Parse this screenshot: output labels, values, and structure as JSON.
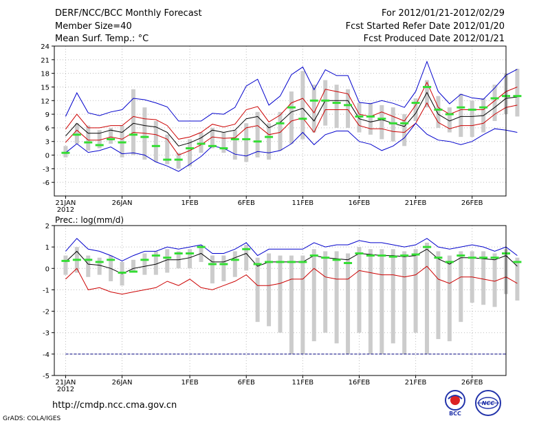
{
  "header": {
    "title": "DERF/NCC/BCC Monthly Forecast",
    "member_size": "Member Size=40",
    "variable": "Mean Surf. Temp.: °C",
    "period": "For 2012/01/21-2012/02/29",
    "start_date": "Fcst Started Refer Date 2012/01/20",
    "produced_date": "Fcst Produced Date 2012/01/21"
  },
  "footer": {
    "url": "http://cmdp.ncc.cma.gov.cn",
    "grads": "GrADS: COLA/IGES",
    "logo1_text": "BCC",
    "logo2_text": "NCC"
  },
  "colors": {
    "max": "#0000cc",
    "mean": "#000000",
    "spread": "#cc0000",
    "median": "#33dd33",
    "box": "#cccccc",
    "ref": "#000080"
  },
  "chart_data": [
    {
      "type": "line",
      "title": "Mean Surf. Temp.: °C",
      "x_tick_labels": [
        "21JAN",
        "26JAN",
        "1FEB",
        "6FEB",
        "11FEB",
        "16FEB",
        "21FEB",
        "26FEB"
      ],
      "x_sublabel": "2012",
      "x_tick_days": [
        1,
        6,
        12,
        17,
        22,
        27,
        32,
        37
      ],
      "x_range_days": [
        0,
        40
      ],
      "y_tick_labels": [
        "-6",
        "-3",
        "0",
        "3",
        "6",
        "9",
        "12",
        "15",
        "18",
        "21",
        "24"
      ],
      "ylim": [
        -9,
        24
      ],
      "grid": true,
      "series": [
        {
          "name": "max",
          "values": [
            8.5,
            13.7,
            9.3,
            8.7,
            9.5,
            10.0,
            12.5,
            12.2,
            11.5,
            10.6,
            7.5,
            7.5,
            7.5,
            9.2,
            9.0,
            10.5,
            15.2,
            16.7,
            11.0,
            13.0,
            17.7,
            19.4,
            14.4,
            18.8,
            17.5,
            17.5,
            11.6,
            11.3,
            12.0,
            11.4,
            10.5,
            14.0,
            20.6,
            14.0,
            11.3,
            13.4,
            12.6,
            12.3,
            14.8,
            17.6,
            18.9
          ]
        },
        {
          "name": "spread_upper",
          "values": [
            5.7,
            9.0,
            6.0,
            6.0,
            6.5,
            6.5,
            8.5,
            8.0,
            7.8,
            6.5,
            3.5,
            4.0,
            5.0,
            6.8,
            6.2,
            6.8,
            10.0,
            10.7,
            7.3,
            8.8,
            11.5,
            12.5,
            9.3,
            14.5,
            14.0,
            13.5,
            9.0,
            8.5,
            9.5,
            8.5,
            7.5,
            11.0,
            16.0,
            10.5,
            9.0,
            10.0,
            10.0,
            10.0,
            12.0,
            14.0,
            15.0
          ]
        },
        {
          "name": "mean",
          "values": [
            4.2,
            7.0,
            4.8,
            4.8,
            5.5,
            5.0,
            7.0,
            6.5,
            6.2,
            5.0,
            2.0,
            2.7,
            3.8,
            5.5,
            5.0,
            5.5,
            8.0,
            8.5,
            6.0,
            7.2,
            9.5,
            10.3,
            7.5,
            12.0,
            12.0,
            12.0,
            8.0,
            7.3,
            7.8,
            7.0,
            6.3,
            9.2,
            13.8,
            9.0,
            7.5,
            8.5,
            8.5,
            8.7,
            10.5,
            12.5,
            12.8
          ]
        },
        {
          "name": "spread_lower",
          "values": [
            2.8,
            5.5,
            3.3,
            3.3,
            4.0,
            3.5,
            5.0,
            4.8,
            4.5,
            3.5,
            0.0,
            1.0,
            2.3,
            4.0,
            3.7,
            3.8,
            6.0,
            6.5,
            4.5,
            5.0,
            7.5,
            8.2,
            5.0,
            10.0,
            10.0,
            10.0,
            6.5,
            5.8,
            5.8,
            5.2,
            5.0,
            7.0,
            11.5,
            7.2,
            5.8,
            6.5,
            6.5,
            7.0,
            9.0,
            10.5,
            11.0
          ]
        },
        {
          "name": "min",
          "values": [
            0.5,
            2.5,
            0.6,
            1.0,
            1.8,
            0.3,
            0.5,
            0.0,
            -1.5,
            -2.4,
            -3.6,
            -2.0,
            -0.3,
            2.0,
            1.5,
            0.2,
            -0.2,
            0.8,
            0.5,
            1.0,
            2.5,
            5.0,
            2.3,
            4.5,
            5.3,
            5.3,
            3.0,
            2.4,
            1.0,
            2.0,
            3.8,
            7.0,
            4.6,
            3.3,
            3.0,
            2.3,
            3.0,
            4.5,
            5.8,
            5.5,
            5.0
          ]
        }
      ],
      "median": [
        0.5,
        4.5,
        2.8,
        2.2,
        3.5,
        2.8,
        4.5,
        4.0,
        2.0,
        -1.0,
        -1.0,
        1.5,
        2.5,
        2.0,
        1.5,
        3.5,
        3.5,
        3.0,
        4.0,
        7.0,
        10.5,
        8.0,
        12.0,
        12.0,
        11.5,
        11.0,
        8.5,
        8.5,
        8.0,
        7.0,
        7.0,
        11.5,
        15.0,
        10.0,
        9.0,
        10.5,
        10.0,
        10.5,
        12.5,
        13.0,
        13.0
      ],
      "box_low": [
        -0.5,
        2.5,
        1.0,
        1.5,
        2.5,
        -0.5,
        0.0,
        -1.0,
        -1.5,
        -2.0,
        -3.0,
        -2.5,
        0.5,
        1.5,
        0.5,
        -1.0,
        -1.5,
        -0.5,
        -1.0,
        1.0,
        2.5,
        3.5,
        5.0,
        6.5,
        6.0,
        6.0,
        5.0,
        4.5,
        3.5,
        3.0,
        2.0,
        7.5,
        10.5,
        6.0,
        5.0,
        4.0,
        4.0,
        5.0,
        7.5,
        9.0,
        8.5
      ],
      "box_high": [
        2.0,
        7.0,
        6.5,
        5.5,
        6.0,
        6.5,
        14.5,
        10.5,
        7.5,
        4.5,
        0.5,
        3.5,
        5.0,
        6.0,
        5.0,
        5.5,
        7.0,
        9.5,
        7.0,
        9.5,
        14.0,
        18.5,
        15.5,
        16.5,
        15.5,
        14.5,
        11.5,
        11.5,
        11.0,
        10.5,
        9.0,
        12.5,
        16.5,
        13.0,
        10.5,
        13.5,
        12.0,
        12.5,
        15.5,
        18.0,
        19.0
      ]
    },
    {
      "type": "line",
      "title": "Prec.: log(mm/d)",
      "x_tick_labels": [
        "21JAN",
        "26JAN",
        "1FEB",
        "6FEB",
        "11FEB",
        "16FEB",
        "21FEB",
        "26FEB"
      ],
      "x_sublabel": "2012",
      "x_tick_days": [
        1,
        6,
        12,
        17,
        22,
        27,
        32,
        37
      ],
      "x_range_days": [
        0,
        40
      ],
      "y_tick_labels": [
        "-5",
        "-4",
        "-3",
        "-2",
        "-1",
        "0",
        "1",
        "2"
      ],
      "ylim": [
        -5,
        2
      ],
      "grid": true,
      "reference_line": -4,
      "series": [
        {
          "name": "max",
          "values": [
            0.8,
            1.4,
            0.9,
            0.8,
            0.6,
            0.35,
            0.6,
            0.8,
            0.8,
            1.0,
            0.9,
            1.0,
            1.1,
            0.7,
            0.7,
            0.9,
            1.2,
            0.6,
            0.9,
            0.9,
            0.9,
            0.9,
            1.2,
            1.0,
            1.1,
            1.1,
            1.3,
            1.2,
            1.2,
            1.1,
            1.0,
            1.1,
            1.4,
            1.0,
            0.9,
            1.0,
            1.1,
            1.0,
            0.8,
            1.0,
            0.6
          ]
        },
        {
          "name": "mean",
          "values": [
            0.3,
            0.8,
            0.2,
            0.15,
            0.0,
            -0.25,
            0.0,
            0.1,
            0.2,
            0.4,
            0.4,
            0.5,
            0.7,
            0.3,
            0.3,
            0.5,
            0.7,
            0.1,
            0.3,
            0.3,
            0.3,
            0.3,
            0.6,
            0.5,
            0.45,
            0.4,
            0.7,
            0.65,
            0.6,
            0.6,
            0.55,
            0.6,
            0.9,
            0.45,
            0.2,
            0.5,
            0.5,
            0.45,
            0.4,
            0.6,
            0.1
          ]
        },
        {
          "name": "lower",
          "values": [
            -0.5,
            0.0,
            -1.0,
            -0.9,
            -1.1,
            -1.2,
            -1.1,
            -1.0,
            -0.9,
            -0.6,
            -0.8,
            -0.5,
            -0.9,
            -1.0,
            -0.8,
            -0.6,
            -0.3,
            -0.8,
            -0.8,
            -0.7,
            -0.5,
            -0.5,
            0.0,
            -0.4,
            -0.5,
            -0.5,
            -0.1,
            -0.2,
            -0.3,
            -0.3,
            -0.4,
            -0.3,
            0.1,
            -0.5,
            -0.7,
            -0.4,
            -0.4,
            -0.5,
            -0.6,
            -0.4,
            -0.7
          ]
        }
      ],
      "median": [
        0.35,
        0.4,
        0.4,
        0.3,
        0.4,
        -0.2,
        -0.15,
        0.4,
        0.6,
        0.5,
        0.7,
        0.7,
        1.0,
        0.2,
        0.2,
        0.4,
        0.9,
        0.2,
        0.3,
        0.3,
        0.3,
        0.3,
        0.6,
        0.5,
        0.4,
        0.25,
        0.7,
        0.6,
        0.6,
        0.55,
        0.6,
        0.65,
        1.0,
        0.5,
        0.3,
        0.6,
        0.5,
        0.5,
        0.5,
        0.7,
        0.3
      ],
      "box_low": [
        -0.3,
        -0.2,
        -0.4,
        -0.3,
        -0.6,
        -0.8,
        -0.2,
        -0.3,
        -0.3,
        -0.2,
        0.0,
        0.0,
        0.3,
        -0.7,
        -0.6,
        -0.4,
        -0.1,
        -2.5,
        -2.7,
        -3.0,
        -4.0,
        -4.0,
        -3.4,
        -3.0,
        -3.5,
        -4.0,
        -3.0,
        -4.0,
        -4.0,
        -3.5,
        -4.0,
        -3.0,
        -4.0,
        -3.3,
        -3.4,
        -2.5,
        -1.6,
        -1.7,
        -1.8,
        -1.2,
        -1.5
      ],
      "box_high": [
        0.6,
        1.0,
        0.6,
        0.5,
        0.6,
        0.3,
        0.4,
        0.7,
        0.8,
        0.9,
        0.8,
        0.9,
        1.1,
        0.6,
        0.6,
        0.8,
        1.1,
        0.5,
        0.7,
        0.6,
        0.6,
        0.6,
        0.9,
        0.8,
        0.8,
        0.7,
        1.0,
        0.9,
        0.9,
        0.9,
        0.8,
        0.9,
        1.2,
        0.8,
        0.6,
        0.8,
        0.8,
        0.8,
        0.7,
        0.9,
        0.5
      ]
    }
  ]
}
